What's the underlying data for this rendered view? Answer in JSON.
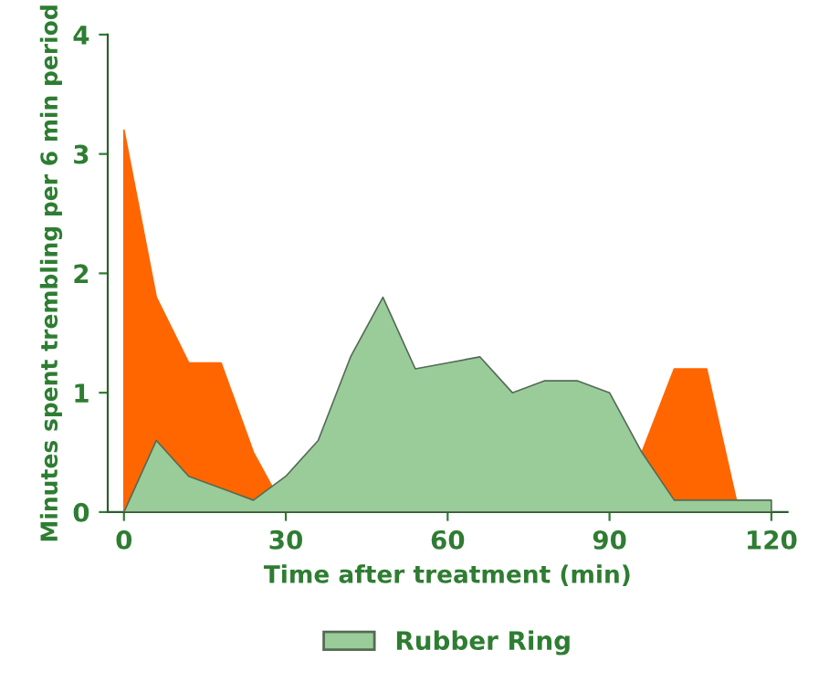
{
  "chart_data": {
    "type": "area",
    "xlabel": "Time after treatment (min)",
    "ylabel": "Minutes spent trembling per 6 min period",
    "x": [
      0,
      6,
      12,
      18,
      24,
      30,
      36,
      42,
      48,
      54,
      60,
      66,
      72,
      78,
      84,
      90,
      96,
      102,
      108,
      114,
      120
    ],
    "series": [
      {
        "color": "#ff6600",
        "values": [
          3.2,
          1.8,
          1.25,
          1.25,
          0.5,
          0,
          null,
          null,
          null,
          null,
          null,
          null,
          null,
          null,
          null,
          null,
          0.5,
          1.2,
          1.2,
          0,
          null
        ]
      },
      {
        "name": "Rubber Ring",
        "color": "#99cc99",
        "values": [
          0,
          0.6,
          0.3,
          0.2,
          0.1,
          0.3,
          0.6,
          1.3,
          1.8,
          1.2,
          1.25,
          1.3,
          1.0,
          1.1,
          1.1,
          1.0,
          0.5,
          0.1,
          0.1,
          0.1,
          0.1
        ]
      }
    ],
    "xlim": [
      -3,
      123
    ],
    "ylim": [
      0,
      4
    ],
    "xticks": [
      0,
      30,
      60,
      90,
      120
    ],
    "yticks": [
      0,
      1,
      2,
      3,
      4
    ],
    "grid": false,
    "legend": "bottom"
  }
}
